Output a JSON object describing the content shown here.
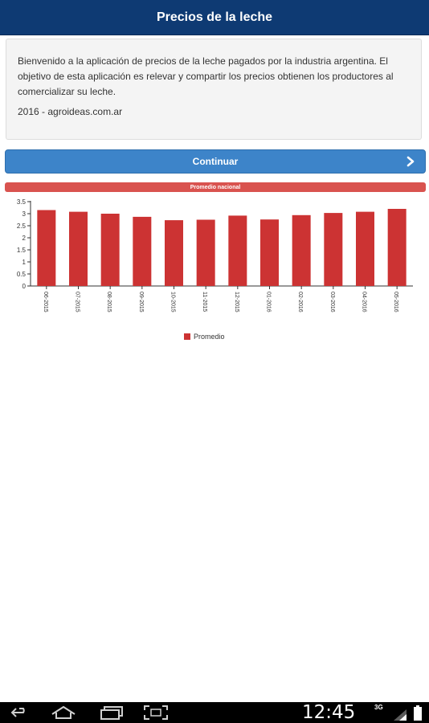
{
  "header": {
    "title": "Precios de la leche"
  },
  "welcome": {
    "text": "Bienvenido a la aplicación de precios de la leche pagados por la industria argentina. El objetivo de esta aplicación es relevar y compartir los precios obtienen los productores al comercializar su leche.",
    "footer": "2016 - agroideas.com.ar"
  },
  "continue_button": {
    "label": "Continuar",
    "icon": "chevron-right-icon"
  },
  "section": {
    "title": "Promedio nacional"
  },
  "colors": {
    "header": "#0e3a73",
    "button": "#3d84c9",
    "bar": "#cc3333",
    "section": "#d9534f"
  },
  "chart_data": {
    "type": "bar",
    "categories": [
      "06-2015",
      "07-2015",
      "08-2015",
      "09-2015",
      "10-2015",
      "11-2015",
      "12-2015",
      "01-2016",
      "02-2016",
      "03-2016",
      "04-2016",
      "05-2016"
    ],
    "series": [
      {
        "name": "Promedio",
        "values": [
          3.15,
          3.08,
          3.0,
          2.87,
          2.73,
          2.75,
          2.92,
          2.76,
          2.94,
          3.03,
          3.08,
          3.2
        ]
      }
    ],
    "yticks": [
      "0",
      "0.5",
      "1",
      "1.5",
      "2",
      "2.5",
      "3",
      "3.5"
    ],
    "ylim": [
      0,
      3.5
    ],
    "legend_position": "bottom-left",
    "grid": false
  },
  "system_bar": {
    "time": "12:45",
    "network": "3G",
    "icons": [
      "back-icon",
      "home-icon",
      "recent-apps-icon",
      "screenshot-icon",
      "signal-icon",
      "battery-icon"
    ]
  }
}
